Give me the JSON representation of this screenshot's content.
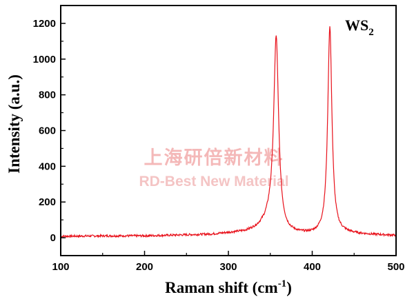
{
  "chart_data": {
    "type": "line",
    "title": "",
    "xlabel": "Raman shift (cm",
    "xlabel_sup": "-1",
    "xlabel_close": ")",
    "ylabel": "Intensity (a.u.)",
    "xlim": [
      100,
      500
    ],
    "ylim": [
      -100,
      1300
    ],
    "x_ticks": [
      100,
      200,
      300,
      400,
      500
    ],
    "y_ticks": [
      0,
      200,
      400,
      600,
      800,
      1000,
      1200
    ],
    "grid": false,
    "legend": "none",
    "annotation": {
      "text": "WS",
      "subscript": "2"
    },
    "watermark": {
      "line1": "上海研倍新材料",
      "line2": "RD-Best New Material"
    },
    "series": [
      {
        "color": "#e8101a",
        "baseline": [
          [
            100,
            8
          ],
          [
            150,
            10
          ],
          [
            200,
            10
          ],
          [
            250,
            15
          ],
          [
            280,
            18
          ],
          [
            300,
            25
          ],
          [
            320,
            30
          ],
          [
            340,
            45
          ],
          [
            370,
            18
          ],
          [
            400,
            15
          ],
          [
            440,
            22
          ],
          [
            460,
            18
          ],
          [
            500,
            12
          ]
        ],
        "peaks": [
          {
            "center": 357,
            "height": 1065,
            "width": 3.5
          },
          {
            "center": 421,
            "height": 1160,
            "width": 3.0
          },
          {
            "center": 350,
            "height": 60,
            "width": 8
          }
        ],
        "noise": 6
      }
    ]
  }
}
